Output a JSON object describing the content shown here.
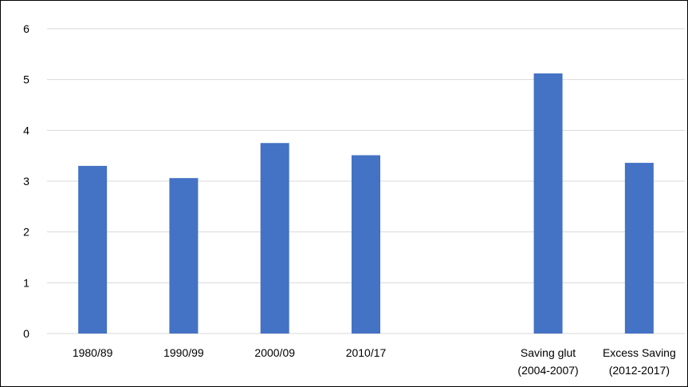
{
  "chart_data": {
    "type": "bar",
    "title": "",
    "xlabel": "",
    "ylabel": "",
    "ylim": [
      0,
      6
    ],
    "yticks": [
      "0",
      "1",
      "2",
      "3",
      "4",
      "5",
      "6"
    ],
    "grid": true,
    "legend": "none",
    "categories": [
      [
        "1980/89"
      ],
      [
        "1990/99"
      ],
      [
        "2000/09"
      ],
      [
        "2010/17"
      ],
      [
        ""
      ],
      [
        "Saving glut",
        "(2004-2007)"
      ],
      [
        "Excess Saving",
        "(2012-2017)"
      ]
    ],
    "values": [
      3.3,
      3.06,
      3.75,
      3.51,
      null,
      5.12,
      3.36
    ],
    "bar_color": "#4472C4",
    "grid_color": "#D9D9D9",
    "text_color": "#000000"
  }
}
